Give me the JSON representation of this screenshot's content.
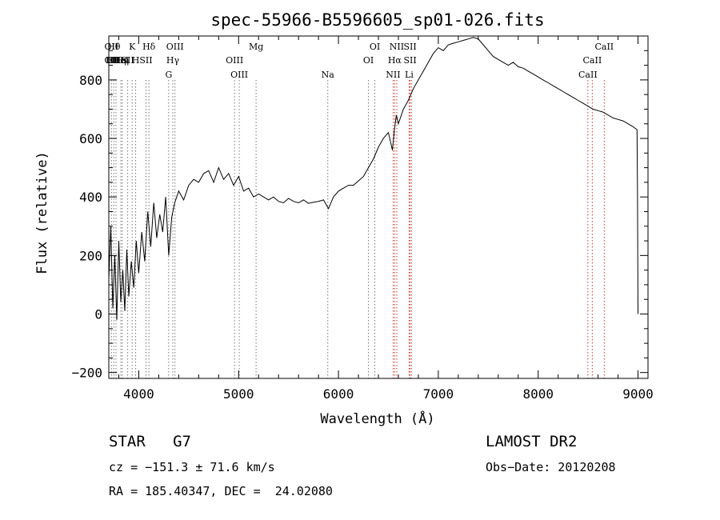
{
  "chart_data": {
    "type": "line",
    "title": "spec-55966-B5596605_sp01-026.fits",
    "xlabel": "Wavelength (Å)",
    "ylabel": "Flux (relative)",
    "xlim": [
      3700,
      9100
    ],
    "ylim": [
      -220,
      950
    ],
    "xticks": [
      4000,
      5000,
      6000,
      7000,
      8000,
      9000
    ],
    "yticks": [
      -200,
      0,
      200,
      400,
      600,
      800
    ],
    "grid": false,
    "legend": "none",
    "series": [
      {
        "x": [
          3700,
          3720,
          3740,
          3760,
          3780,
          3800,
          3820,
          3840,
          3860,
          3880,
          3900,
          3925,
          3950,
          3975,
          4000,
          4030,
          4060,
          4090,
          4120,
          4150,
          4180,
          4210,
          4240,
          4270,
          4300,
          4330,
          4360,
          4400,
          4450,
          4500,
          4550,
          4600,
          4650,
          4700,
          4750,
          4800,
          4850,
          4900,
          4950,
          5000,
          5050,
          5100,
          5150,
          5200,
          5250,
          5300,
          5350,
          5400,
          5450,
          5500,
          5550,
          5600,
          5650,
          5700,
          5750,
          5800,
          5850,
          5900,
          5950,
          6000,
          6050,
          6100,
          6150,
          6200,
          6250,
          6300,
          6350,
          6400,
          6450,
          6500,
          6540,
          6560,
          6580,
          6600,
          6650,
          6700,
          6750,
          6800,
          6850,
          6900,
          6950,
          7000,
          7050,
          7100,
          7150,
          7200,
          7250,
          7300,
          7350,
          7400,
          7450,
          7500,
          7550,
          7600,
          7650,
          7700,
          7750,
          7800,
          7850,
          7900,
          7950,
          8000,
          8050,
          8100,
          8150,
          8200,
          8250,
          8300,
          8350,
          8400,
          8450,
          8500,
          8550,
          8600,
          8650,
          8700,
          8750,
          8800,
          8850,
          8900,
          8950,
          8990,
          8995,
          9000
        ],
        "y": [
          120,
          300,
          20,
          200,
          -20,
          250,
          40,
          150,
          10,
          220,
          60,
          180,
          90,
          250,
          140,
          280,
          180,
          350,
          230,
          380,
          260,
          340,
          280,
          400,
          200,
          330,
          380,
          420,
          390,
          440,
          460,
          450,
          480,
          490,
          450,
          500,
          460,
          480,
          440,
          470,
          420,
          430,
          400,
          410,
          400,
          390,
          400,
          385,
          380,
          395,
          385,
          380,
          390,
          378,
          382,
          385,
          390,
          360,
          400,
          420,
          430,
          440,
          440,
          455,
          470,
          500,
          530,
          570,
          600,
          620,
          560,
          630,
          680,
          650,
          700,
          730,
          770,
          800,
          830,
          860,
          890,
          910,
          900,
          920,
          925,
          930,
          935,
          940,
          945,
          940,
          920,
          900,
          880,
          870,
          860,
          850,
          860,
          845,
          840,
          830,
          820,
          810,
          800,
          790,
          780,
          770,
          760,
          750,
          740,
          730,
          720,
          710,
          700,
          695,
          690,
          680,
          670,
          665,
          660,
          650,
          640,
          630,
          400,
          0
        ]
      }
    ],
    "lines": [
      {
        "x": 3727,
        "labels": [
          "OII",
          "OII"
        ]
      },
      {
        "x": 3750,
        "labels": [
          "Hθ",
          "OII"
        ]
      },
      {
        "x": 3772,
        "labels": [
          "",
          "HHη"
        ]
      },
      {
        "x": 3820,
        "labels": [
          "",
          "HeI"
        ]
      },
      {
        "x": 3835,
        "labels": [
          "",
          "Hη"
        ]
      },
      {
        "x": 3889,
        "labels": [
          "",
          "SII"
        ]
      },
      {
        "x": 3934,
        "labels": [
          "K"
        ]
      },
      {
        "x": 3969,
        "labels": [
          "",
          "H"
        ]
      },
      {
        "x": 4072,
        "labels": [
          "",
          "SII"
        ]
      },
      {
        "x": 4102,
        "labels": [
          "Hδ"
        ]
      },
      {
        "x": 4300,
        "labels": [
          "",
          "",
          "G"
        ]
      },
      {
        "x": 4341,
        "labels": [
          "",
          "Hγ"
        ]
      },
      {
        "x": 4363,
        "labels": [
          "OIII"
        ]
      },
      {
        "x": 4959,
        "labels": [
          "",
          "OIII"
        ]
      },
      {
        "x": 5007,
        "labels": [
          "",
          "",
          "OIII"
        ]
      },
      {
        "x": 5175,
        "labels": [
          "Mg"
        ]
      },
      {
        "x": 5893,
        "labels": [
          "",
          "",
          "Na"
        ]
      },
      {
        "x": 6300,
        "labels": [
          "",
          "OI"
        ]
      },
      {
        "x": 6364,
        "labels": [
          "OI"
        ]
      },
      {
        "x": 6548,
        "labels": [
          "",
          "",
          "NII"
        ]
      },
      {
        "x": 6563,
        "labels": [
          "",
          "Hα"
        ]
      },
      {
        "x": 6584,
        "labels": [
          "NII"
        ]
      },
      {
        "x": 6708,
        "labels": [
          "",
          "",
          "Li"
        ]
      },
      {
        "x": 6717,
        "labels": [
          "SII",
          "SII"
        ]
      },
      {
        "x": 6731,
        "labels": [
          ""
        ]
      },
      {
        "x": 8498,
        "labels": [
          "",
          "",
          "CaII"
        ]
      },
      {
        "x": 8542,
        "labels": [
          "",
          "CaII"
        ]
      },
      {
        "x": 8662,
        "labels": [
          "CaII"
        ]
      }
    ]
  },
  "info": {
    "object": "STAR   G7",
    "survey": "LAMOST DR2",
    "cz": "cz = −151.3 ± 71.6 km/s",
    "obs_date": "Obs−Date: 20120208",
    "coords": "RA = 185.40347, DEC =  24.02080"
  }
}
